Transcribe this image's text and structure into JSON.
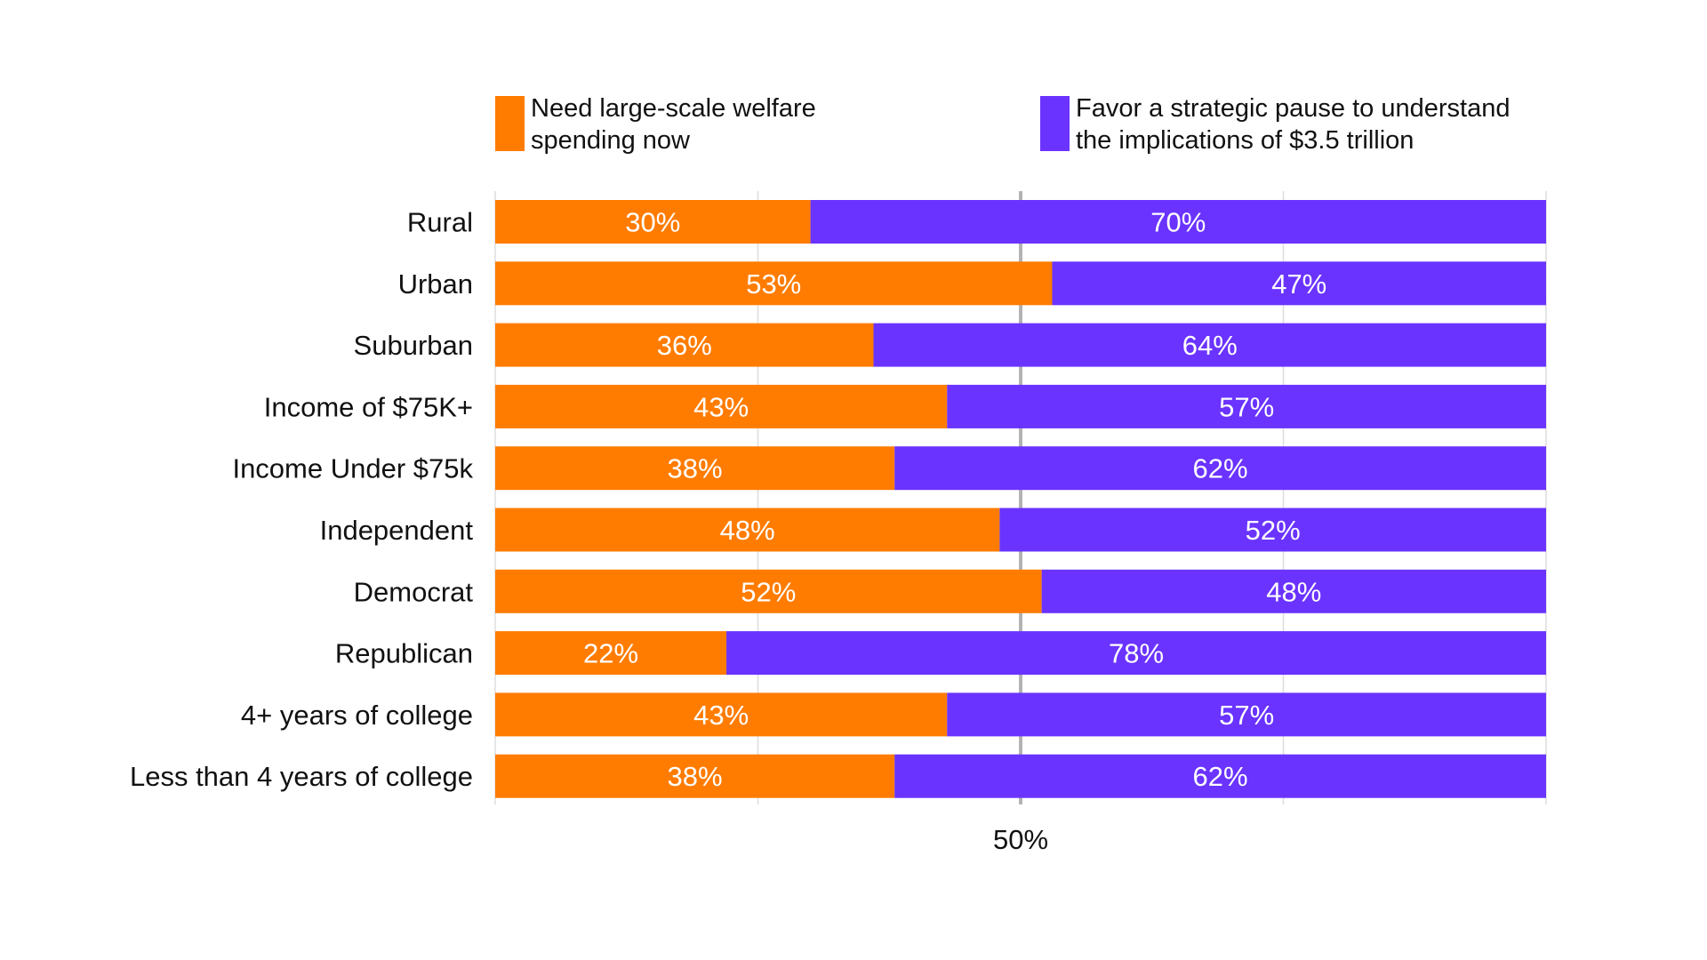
{
  "chart_data": {
    "type": "bar",
    "orientation": "horizontal",
    "stacked": true,
    "categories": [
      "Rural",
      "Urban",
      "Suburban",
      "Income of $75K+",
      "Income Under $75k",
      "Independent",
      "Democrat",
      "Republican",
      "4+ years of college",
      "Less than 4 years of college"
    ],
    "series": [
      {
        "name": "Need large-scale welfare spending now",
        "legend_lines": [
          "Need large-scale welfare",
          "spending now"
        ],
        "color": "#FF7C00",
        "values": [
          30,
          53,
          36,
          43,
          38,
          48,
          52,
          22,
          43,
          38
        ]
      },
      {
        "name": "Favor a strategic pause to understand the implications of $3.5 trillion",
        "legend_lines": [
          "Favor a strategic pause to understand",
          "the implications of $3.5 trillion"
        ],
        "color": "#6A33FF",
        "values": [
          70,
          47,
          64,
          57,
          62,
          52,
          48,
          78,
          57,
          62
        ]
      }
    ],
    "value_suffix": "%",
    "xlim": [
      0,
      100
    ],
    "x_ticks": [
      0,
      25,
      50,
      75,
      100
    ],
    "x_tick_labels": [
      {
        "value": 50,
        "label": "50%"
      }
    ],
    "grid": true,
    "legend_position": "top"
  }
}
